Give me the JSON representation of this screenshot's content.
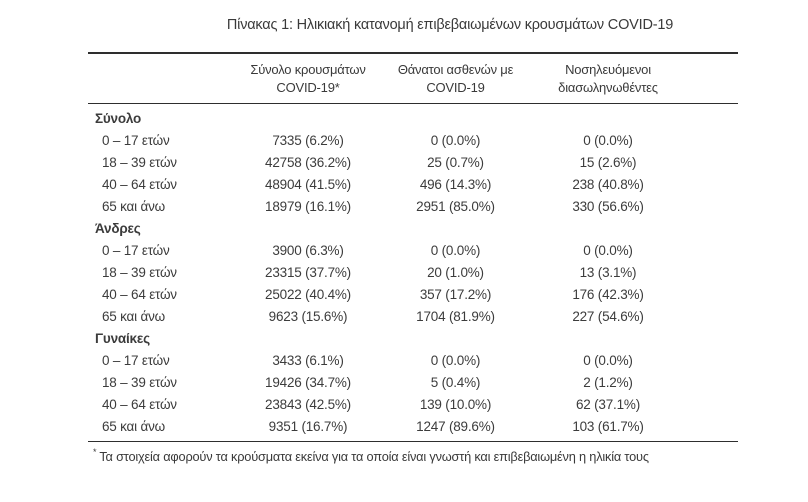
{
  "title": "Πίνακας 1: Ηλικιακή κατανομή επιβεβαιωμένων κρουσμάτων COVID-19",
  "table": {
    "columns": [
      {
        "line1": "Σύνολο κρουσμάτων",
        "line2": "COVID-19*"
      },
      {
        "line1": "Θάνατοι ασθενών με",
        "line2": "COVID-19"
      },
      {
        "line1": "Νοσηλευόμενοι",
        "line2": "διασωληνωθέντες"
      }
    ],
    "sections": [
      {
        "label": "Σύνολο",
        "rows": [
          {
            "label": "0 – 17 ετών",
            "cases": "7335 (6.2%)",
            "deaths": "0 (0.0%)",
            "intubated": "0 (0.0%)"
          },
          {
            "label": "18 – 39 ετών",
            "cases": "42758 (36.2%)",
            "deaths": "25 (0.7%)",
            "intubated": "15 (2.6%)"
          },
          {
            "label": "40 – 64 ετών",
            "cases": "48904 (41.5%)",
            "deaths": "496 (14.3%)",
            "intubated": "238 (40.8%)"
          },
          {
            "label": "65 και άνω",
            "cases": "18979 (16.1%)",
            "deaths": "2951 (85.0%)",
            "intubated": "330 (56.6%)"
          }
        ]
      },
      {
        "label": "Άνδρες",
        "rows": [
          {
            "label": "0 – 17 ετών",
            "cases": "3900 (6.3%)",
            "deaths": "0 (0.0%)",
            "intubated": "0 (0.0%)"
          },
          {
            "label": "18 – 39 ετών",
            "cases": "23315 (37.7%)",
            "deaths": "20 (1.0%)",
            "intubated": "13 (3.1%)"
          },
          {
            "label": "40 – 64 ετών",
            "cases": "25022 (40.4%)",
            "deaths": "357 (17.2%)",
            "intubated": "176 (42.3%)"
          },
          {
            "label": "65 και άνω",
            "cases": "9623 (15.6%)",
            "deaths": "1704 (81.9%)",
            "intubated": "227 (54.6%)"
          }
        ]
      },
      {
        "label": "Γυναίκες",
        "rows": [
          {
            "label": "0 – 17 ετών",
            "cases": "3433 (6.1%)",
            "deaths": "0 (0.0%)",
            "intubated": "0 (0.0%)"
          },
          {
            "label": "18 – 39 ετών",
            "cases": "19426 (34.7%)",
            "deaths": "5 (0.4%)",
            "intubated": "2 (1.2%)"
          },
          {
            "label": "40 – 64 ετών",
            "cases": "23843 (42.5%)",
            "deaths": "139 (10.0%)",
            "intubated": "62 (37.1%)"
          },
          {
            "label": "65 και άνω",
            "cases": "9351 (16.7%)",
            "deaths": "1247 (89.6%)",
            "intubated": "103 (61.7%)"
          }
        ]
      }
    ],
    "footnote_marker": "*",
    "footnote": "Τα στοιχεία αφορούν τα κρούσματα εκείνα για τα οποία είναι γνωστή και επιβεβαιωμένη η ηλικία τους"
  },
  "colors": {
    "text": "#3c3c3c",
    "rule": "#2e2e2e",
    "background": "#ffffff"
  }
}
